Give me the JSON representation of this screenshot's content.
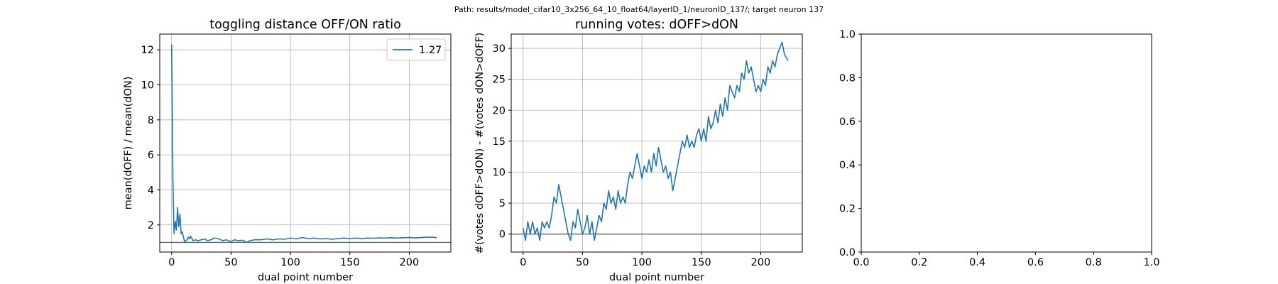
{
  "figure": {
    "suptitle": "Path: results/model_cifar10_3x256_64_10_float64/layerID_1/neuronID_137/; target neuron 137"
  },
  "colors": {
    "series": "#1f77b4",
    "refline": "#666666",
    "grid": "#b0b0b0"
  },
  "chart_data": [
    {
      "type": "line",
      "title": "toggling distance OFF/ON ratio",
      "xlabel": "dual point number",
      "ylabel": "mean(dOFF) / mean(dON)",
      "xlim": [
        -10,
        235
      ],
      "ylim": [
        0.45,
        12.9
      ],
      "xticks": [
        0,
        50,
        100,
        150,
        200
      ],
      "xtick_labels": [
        "0",
        "50",
        "100",
        "150",
        "200"
      ],
      "yticks": [
        2,
        4,
        6,
        8,
        10,
        12
      ],
      "ytick_labels": [
        "2",
        "4",
        "6",
        "8",
        "10",
        "12"
      ],
      "grid": true,
      "legend": "top-right",
      "reference_line_y": 1,
      "series": [
        {
          "name": "1.27",
          "x": [
            0,
            1,
            2,
            3,
            4,
            5,
            6,
            7,
            8,
            9,
            10,
            11,
            12,
            13,
            14,
            15,
            16,
            18,
            20,
            22,
            25,
            28,
            30,
            33,
            36,
            40,
            43,
            46,
            50,
            53,
            56,
            60,
            63,
            66,
            70,
            75,
            80,
            85,
            90,
            95,
            100,
            105,
            110,
            115,
            120,
            125,
            130,
            135,
            140,
            145,
            150,
            155,
            160,
            165,
            170,
            175,
            180,
            185,
            190,
            195,
            200,
            205,
            210,
            215,
            220,
            223
          ],
          "y": [
            12.3,
            5.0,
            1.5,
            2.2,
            1.7,
            3.0,
            1.9,
            2.6,
            1.5,
            1.6,
            1.3,
            1.0,
            1.1,
            1.15,
            1.3,
            1.2,
            1.35,
            1.1,
            1.15,
            1.1,
            1.15,
            1.2,
            1.1,
            1.15,
            1.25,
            1.2,
            1.1,
            1.15,
            1.05,
            1.15,
            1.1,
            1.12,
            1.0,
            1.1,
            1.15,
            1.15,
            1.2,
            1.15,
            1.2,
            1.18,
            1.25,
            1.2,
            1.28,
            1.22,
            1.25,
            1.2,
            1.22,
            1.18,
            1.22,
            1.25,
            1.22,
            1.25,
            1.22,
            1.25,
            1.24,
            1.26,
            1.25,
            1.27,
            1.25,
            1.27,
            1.28,
            1.26,
            1.28,
            1.3,
            1.3,
            1.27
          ]
        }
      ]
    },
    {
      "type": "line",
      "title": "running votes: dOFF>dON",
      "xlabel": "dual point number",
      "ylabel": "#(votes dOFF>dON) - #(votes dON>dOFF)",
      "xlim": [
        -10,
        235
      ],
      "ylim": [
        -2.9,
        32.3
      ],
      "xticks": [
        0,
        50,
        100,
        150,
        200
      ],
      "xtick_labels": [
        "0",
        "50",
        "100",
        "150",
        "200"
      ],
      "yticks": [
        0,
        5,
        10,
        15,
        20,
        25,
        30
      ],
      "ytick_labels": [
        "0",
        "5",
        "10",
        "15",
        "20",
        "25",
        "30"
      ],
      "grid": true,
      "reference_line_y": 0,
      "series": [
        {
          "x": [
            0,
            2,
            4,
            6,
            8,
            10,
            12,
            14,
            16,
            18,
            20,
            22,
            24,
            26,
            28,
            30,
            32,
            34,
            36,
            38,
            40,
            42,
            44,
            46,
            48,
            50,
            52,
            54,
            56,
            58,
            60,
            62,
            64,
            66,
            68,
            70,
            72,
            74,
            76,
            78,
            80,
            82,
            84,
            86,
            88,
            90,
            92,
            94,
            96,
            98,
            100,
            102,
            104,
            106,
            108,
            110,
            112,
            114,
            116,
            118,
            120,
            122,
            124,
            126,
            128,
            130,
            132,
            134,
            136,
            138,
            140,
            142,
            144,
            146,
            148,
            150,
            152,
            154,
            156,
            158,
            160,
            162,
            164,
            166,
            168,
            170,
            172,
            174,
            176,
            178,
            180,
            182,
            184,
            186,
            188,
            190,
            192,
            194,
            196,
            198,
            200,
            202,
            204,
            206,
            208,
            210,
            212,
            214,
            216,
            218,
            220,
            223
          ],
          "y": [
            1,
            -1,
            2,
            0,
            2,
            0,
            1,
            -1,
            2,
            1,
            2,
            1,
            3,
            6,
            5,
            8,
            6,
            4,
            2,
            0,
            -1,
            2,
            1,
            4,
            2,
            0,
            1,
            3,
            0,
            2,
            -1,
            1,
            3,
            2,
            5,
            4,
            7,
            5,
            6,
            4,
            7,
            5,
            6,
            5,
            8,
            10,
            9,
            11,
            13,
            11,
            9,
            11,
            10,
            12,
            10,
            13,
            11,
            14,
            12,
            10,
            11,
            9,
            10,
            7,
            9,
            11,
            13,
            15,
            14,
            16,
            14,
            15,
            14,
            16,
            17,
            15,
            17,
            15,
            19,
            17,
            18,
            20,
            18,
            21,
            19,
            22,
            20,
            24,
            23,
            22,
            24,
            23,
            26,
            25,
            28,
            26,
            27,
            25,
            23,
            24,
            23,
            25,
            24,
            27,
            26,
            28,
            27,
            29,
            30,
            31,
            29,
            28
          ]
        }
      ]
    },
    {
      "type": "line",
      "title": "",
      "xlabel": "",
      "ylabel": "",
      "xlim": [
        0,
        1
      ],
      "ylim": [
        0,
        1
      ],
      "xticks": [
        0,
        0.2,
        0.4,
        0.6,
        0.8,
        1
      ],
      "xtick_labels": [
        "0.0",
        "0.2",
        "0.4",
        "0.6",
        "0.8",
        "1.0"
      ],
      "yticks": [
        0,
        0.2,
        0.4,
        0.6,
        0.8,
        1
      ],
      "ytick_labels": [
        "0.0",
        "0.2",
        "0.4",
        "0.6",
        "0.8",
        "1.0"
      ],
      "grid": false,
      "series": []
    }
  ]
}
